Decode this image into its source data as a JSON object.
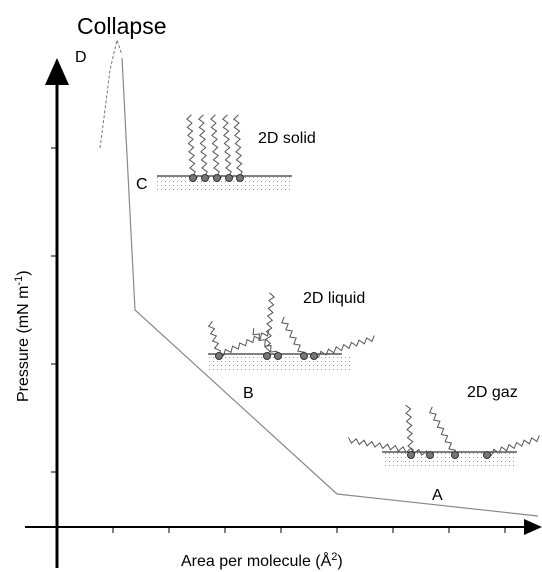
{
  "title": "Collapse",
  "points": {
    "D": "D",
    "C": "C",
    "B": "B",
    "A": "A"
  },
  "phases": {
    "solid": "2D solid",
    "liquid": "2D liquid",
    "gas": "2D gaz"
  },
  "y_label": {
    "text": "Pressure (mN m",
    "sup": "-1",
    "end": ")"
  },
  "x_label": {
    "text": "Area per molecule (Å",
    "sup": "2",
    "end": ")"
  }
}
